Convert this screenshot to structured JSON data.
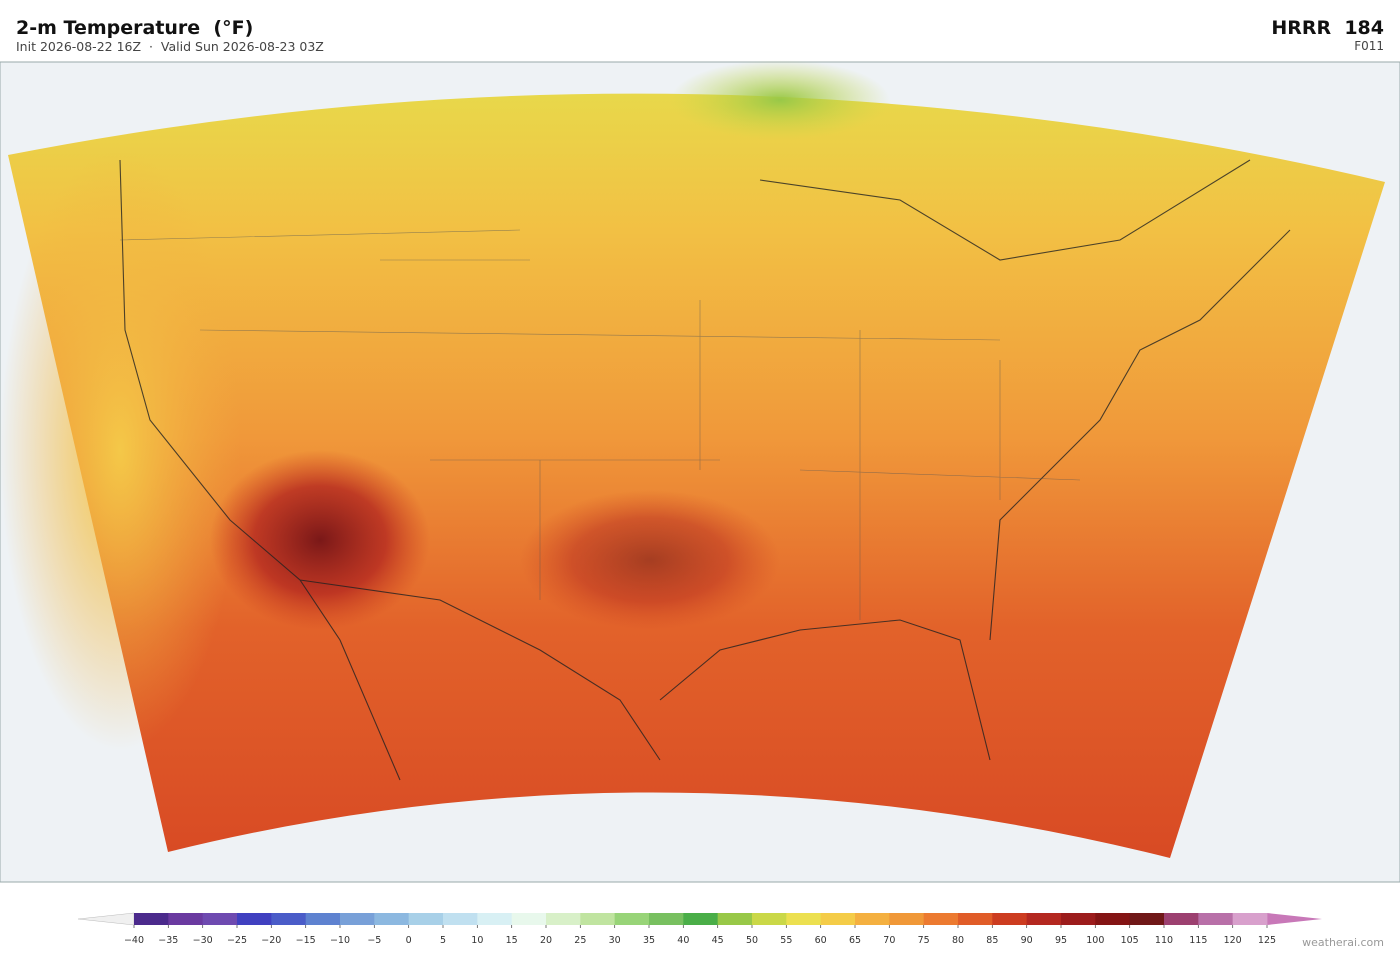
{
  "header": {
    "title": "2-m Temperature  (°F)",
    "subtitle": "Init 2026-08-22 16Z  ·  Valid Sun 2026-08-23 03Z",
    "model": "HRRR  184",
    "forecast_hour": "F011"
  },
  "colorbar": {
    "ticks": [
      {
        "value": -40,
        "label": "−40"
      },
      {
        "value": -35,
        "label": "−35"
      },
      {
        "value": -30,
        "label": "−30"
      },
      {
        "value": -25,
        "label": "−25"
      },
      {
        "value": -20,
        "label": "−20"
      },
      {
        "value": -15,
        "label": "−15"
      },
      {
        "value": -10,
        "label": "−10"
      },
      {
        "value": -5,
        "label": "−5"
      },
      0,
      5,
      10,
      15,
      20,
      25,
      30,
      35,
      40,
      45,
      50,
      55,
      60,
      65,
      70,
      75,
      80,
      85,
      90,
      95,
      100,
      105,
      110,
      115,
      120,
      125
    ],
    "colors": [
      "#4b2a8c",
      "#6a3aa0",
      "#6e4ab0",
      "#4040c0",
      "#4a5cc8",
      "#5e82d0",
      "#78a0d8",
      "#8cb8e0",
      "#a8d0e8",
      "#c0e0f0",
      "#d8f0f4",
      "#e8f8ec",
      "#d8f0c8",
      "#c0e4a0",
      "#98d478",
      "#78c060",
      "#4aae48",
      "#98c848",
      "#cad848",
      "#ece050",
      "#f4cc48",
      "#f4b040",
      "#f09838",
      "#ec7a30",
      "#e05c28",
      "#cc3c20",
      "#b42820",
      "#9c1c1c",
      "#841414",
      "#701818",
      "#9c4070",
      "#b870a8",
      "#d8a0cc"
    ],
    "under_color": "#f0f0f0",
    "over_color": "#c878b8"
  },
  "footer": {
    "watermark": "weatherai.com"
  }
}
